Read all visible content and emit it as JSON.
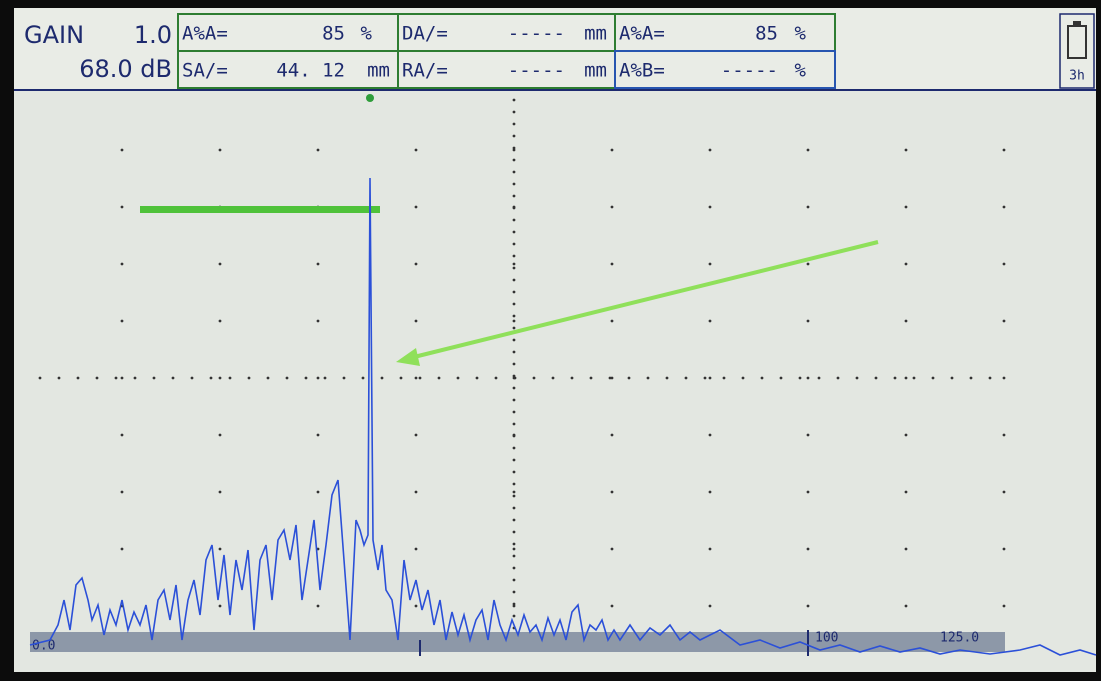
{
  "header": {
    "gain": {
      "label": "GAIN",
      "step": "1.0",
      "value": "68.0 dB"
    },
    "readouts": [
      {
        "label": "A%A=",
        "value": "85",
        "unit": "%"
      },
      {
        "label": "SA/=",
        "value": "44. 12",
        "unit": "mm"
      },
      {
        "label": "DA/=",
        "value": "-----",
        "unit": "mm"
      },
      {
        "label": "RA/=",
        "value": "-----",
        "unit": "mm"
      },
      {
        "label": "A%A=",
        "value": "85",
        "unit": "%"
      },
      {
        "label": "A%B=",
        "value": "-----",
        "unit": "%"
      }
    ],
    "battery": "3h"
  },
  "scale": {
    "labels": [
      "0.0",
      "100",
      "125.0"
    ]
  }
}
